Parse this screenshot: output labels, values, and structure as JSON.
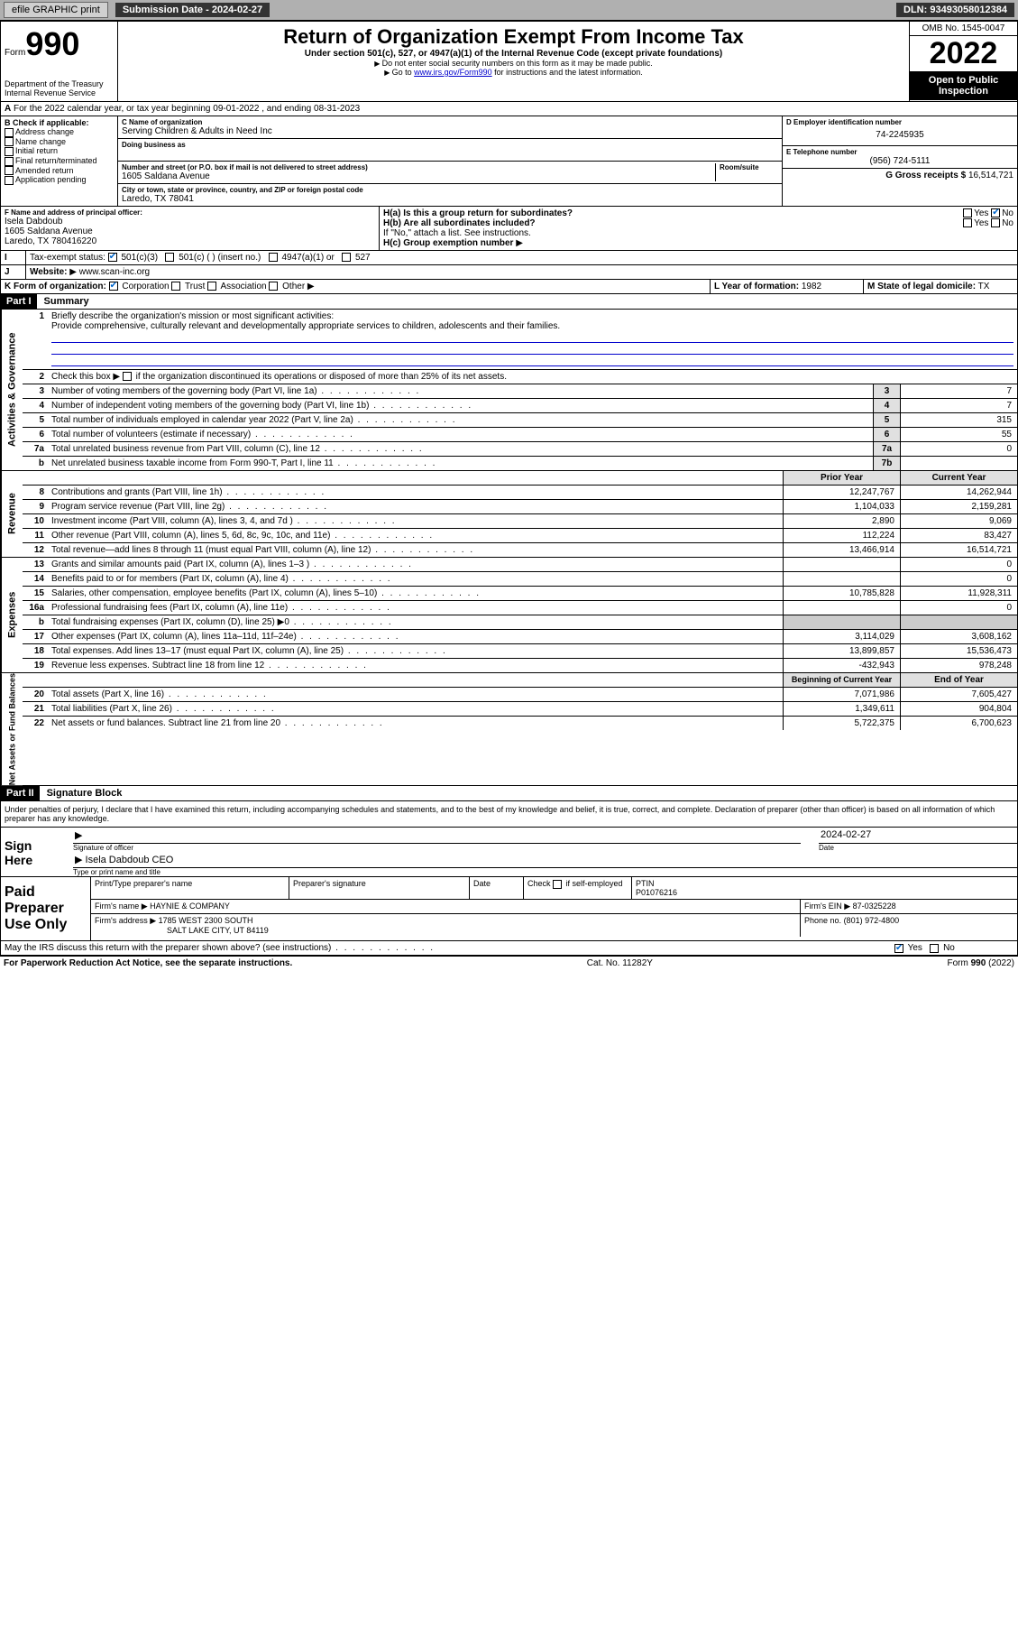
{
  "topbar": {
    "efile": "efile GRAPHIC print",
    "sub_label": "Submission Date - 2024-02-27",
    "dln": "DLN: 93493058012384"
  },
  "header": {
    "form_word": "Form",
    "form_num": "990",
    "dept": "Department of the Treasury",
    "irs": "Internal Revenue Service",
    "title": "Return of Organization Exempt From Income Tax",
    "sub1": "Under section 501(c), 527, or 4947(a)(1) of the Internal Revenue Code (except private foundations)",
    "sub2": "Do not enter social security numbers on this form as it may be made public.",
    "sub3_pre": "Go to ",
    "sub3_link": "www.irs.gov/Form990",
    "sub3_post": " for instructions and the latest information.",
    "omb": "OMB No. 1545-0047",
    "year": "2022",
    "open": "Open to Public Inspection"
  },
  "line_a": "For the 2022 calendar year, or tax year beginning 09-01-2022   , and ending 08-31-2023",
  "box_b": {
    "hdr": "B Check if applicable:",
    "items": [
      "Address change",
      "Name change",
      "Initial return",
      "Final return/terminated",
      "Amended return",
      "Application pending"
    ]
  },
  "box_c": {
    "name_lbl": "C Name of organization",
    "name": "Serving Children & Adults in Need Inc",
    "dba_lbl": "Doing business as",
    "addr_lbl": "Number and street (or P.O. box if mail is not delivered to street address)",
    "room_lbl": "Room/suite",
    "addr": "1605 Saldana Avenue",
    "city_lbl": "City or town, state or province, country, and ZIP or foreign postal code",
    "city": "Laredo, TX  78041"
  },
  "box_d": {
    "lbl": "D Employer identification number",
    "val": "74-2245935"
  },
  "box_e": {
    "lbl": "E Telephone number",
    "val": "(956) 724-5111"
  },
  "box_g": {
    "lbl": "G Gross receipts $",
    "val": "16,514,721"
  },
  "box_f": {
    "lbl": "F  Name and address of principal officer:",
    "l1": "Isela Dabdoub",
    "l2": "1605 Saldana Avenue",
    "l3": "Laredo, TX  780416220"
  },
  "box_h": {
    "a_lbl": "H(a)  Is this a group return for subordinates?",
    "b_lbl": "H(b)  Are all subordinates included?",
    "b_note": "If \"No,\" attach a list. See instructions.",
    "c_lbl": "H(c)  Group exemption number",
    "yes": "Yes",
    "no": "No"
  },
  "box_i": {
    "lbl": "Tax-exempt status:",
    "o1": "501(c)(3)",
    "o2": "501(c) (  )  (insert no.)",
    "o3": "4947(a)(1) or",
    "o4": "527"
  },
  "box_j": {
    "lbl": "Website:",
    "val": "www.scan-inc.org"
  },
  "box_k": {
    "lbl": "K Form of organization:",
    "o1": "Corporation",
    "o2": "Trust",
    "o3": "Association",
    "o4": "Other"
  },
  "box_l": {
    "lbl": "L Year of formation:",
    "val": "1982"
  },
  "box_m": {
    "lbl": "M State of legal domicile:",
    "val": "TX"
  },
  "part1": {
    "hdr": "Part I",
    "title": "Summary"
  },
  "mission": {
    "num": "1",
    "lbl": "Briefly describe the organization's mission or most significant activities:",
    "text": "Provide comprehensive, culturally relevant and developmentally appropriate services to children, adolescents and their families."
  },
  "line2": {
    "num": "2",
    "text": "Check this box      if the organization discontinued its operations or disposed of more than 25% of its net assets."
  },
  "gov_lines": [
    {
      "num": "3",
      "text": "Number of voting members of the governing body (Part VI, line 1a)",
      "box": "3",
      "val": "7"
    },
    {
      "num": "4",
      "text": "Number of independent voting members of the governing body (Part VI, line 1b)",
      "box": "4",
      "val": "7"
    },
    {
      "num": "5",
      "text": "Total number of individuals employed in calendar year 2022 (Part V, line 2a)",
      "box": "5",
      "val": "315"
    },
    {
      "num": "6",
      "text": "Total number of volunteers (estimate if necessary)",
      "box": "6",
      "val": "55"
    },
    {
      "num": "7a",
      "text": "Total unrelated business revenue from Part VIII, column (C), line 12",
      "box": "7a",
      "val": "0"
    },
    {
      "num": "b",
      "text": "Net unrelated business taxable income from Form 990-T, Part I, line 11",
      "box": "7b",
      "val": ""
    }
  ],
  "sidebar_gov": "Activities & Governance",
  "sidebar_rev": "Revenue",
  "sidebar_exp": "Expenses",
  "sidebar_net": "Net Assets or Fund Balances",
  "col_prior": "Prior Year",
  "col_cur": "Current Year",
  "rev_lines": [
    {
      "num": "8",
      "text": "Contributions and grants (Part VIII, line 1h)",
      "prior": "12,247,767",
      "cur": "14,262,944"
    },
    {
      "num": "9",
      "text": "Program service revenue (Part VIII, line 2g)",
      "prior": "1,104,033",
      "cur": "2,159,281"
    },
    {
      "num": "10",
      "text": "Investment income (Part VIII, column (A), lines 3, 4, and 7d )",
      "prior": "2,890",
      "cur": "9,069"
    },
    {
      "num": "11",
      "text": "Other revenue (Part VIII, column (A), lines 5, 6d, 8c, 9c, 10c, and 11e)",
      "prior": "112,224",
      "cur": "83,427"
    },
    {
      "num": "12",
      "text": "Total revenue—add lines 8 through 11 (must equal Part VIII, column (A), line 12)",
      "prior": "13,466,914",
      "cur": "16,514,721"
    }
  ],
  "exp_lines": [
    {
      "num": "13",
      "text": "Grants and similar amounts paid (Part IX, column (A), lines 1–3 )",
      "prior": "",
      "cur": "0"
    },
    {
      "num": "14",
      "text": "Benefits paid to or for members (Part IX, column (A), line 4)",
      "prior": "",
      "cur": "0"
    },
    {
      "num": "15",
      "text": "Salaries, other compensation, employee benefits (Part IX, column (A), lines 5–10)",
      "prior": "10,785,828",
      "cur": "11,928,311"
    },
    {
      "num": "16a",
      "text": "Professional fundraising fees (Part IX, column (A), line 11e)",
      "prior": "",
      "cur": "0"
    },
    {
      "num": "b",
      "text": "Total fundraising expenses (Part IX, column (D), line 25)  ▶0",
      "prior": "shade",
      "cur": "shade"
    },
    {
      "num": "17",
      "text": "Other expenses (Part IX, column (A), lines 11a–11d, 11f–24e)",
      "prior": "3,114,029",
      "cur": "3,608,162"
    },
    {
      "num": "18",
      "text": "Total expenses. Add lines 13–17 (must equal Part IX, column (A), line 25)",
      "prior": "13,899,857",
      "cur": "15,536,473"
    },
    {
      "num": "19",
      "text": "Revenue less expenses. Subtract line 18 from line 12",
      "prior": "-432,943",
      "cur": "978,248"
    }
  ],
  "col_begin": "Beginning of Current Year",
  "col_end": "End of Year",
  "net_lines": [
    {
      "num": "20",
      "text": "Total assets (Part X, line 16)",
      "prior": "7,071,986",
      "cur": "7,605,427"
    },
    {
      "num": "21",
      "text": "Total liabilities (Part X, line 26)",
      "prior": "1,349,611",
      "cur": "904,804"
    },
    {
      "num": "22",
      "text": "Net assets or fund balances. Subtract line 21 from line 20",
      "prior": "5,722,375",
      "cur": "6,700,623"
    }
  ],
  "part2": {
    "hdr": "Part II",
    "title": "Signature Block"
  },
  "penalties": "Under penalties of perjury, I declare that I have examined this return, including accompanying schedules and statements, and to the best of my knowledge and belief, it is true, correct, and complete. Declaration of preparer (other than officer) is based on all information of which preparer has any knowledge.",
  "sign": {
    "here": "Sign Here",
    "sig_lbl": "Signature of officer",
    "date_lbl": "Date",
    "date": "2024-02-27",
    "name": "Isela Dabdoub CEO",
    "name_lbl": "Type or print name and title"
  },
  "prep": {
    "label": "Paid Preparer Use Only",
    "h1": "Print/Type preparer's name",
    "h2": "Preparer's signature",
    "h3": "Date",
    "h4_chk": "Check       if self-employed",
    "h5": "PTIN",
    "ptin": "P01076216",
    "firm_lbl": "Firm's name   ",
    "firm": "HAYNIE & COMPANY",
    "ein_lbl": "Firm's EIN ",
    "ein": "87-0325228",
    "addr_lbl": "Firm's address ",
    "addr1": "1785 WEST 2300 SOUTH",
    "addr2": "SALT LAKE CITY, UT  84119",
    "phone_lbl": "Phone no.",
    "phone": "(801) 972-4800"
  },
  "discuss": {
    "text": "May the IRS discuss this return with the preparer shown above? (see instructions)",
    "yes": "Yes",
    "no": "No"
  },
  "footer": {
    "l": "For Paperwork Reduction Act Notice, see the separate instructions.",
    "m": "Cat. No. 11282Y",
    "r": "Form 990 (2022)"
  }
}
